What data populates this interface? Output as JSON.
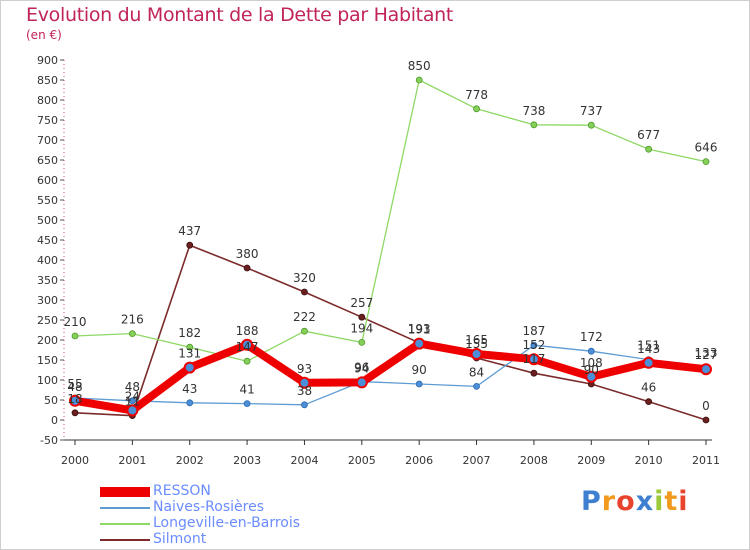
{
  "chart_data": {
    "type": "line",
    "title": "Evolution du Montant de la Dette par Habitant",
    "subtitle": "(en €)",
    "xlabel": "",
    "ylabel": "",
    "x": [
      "2000",
      "2001",
      "2002",
      "2003",
      "2004",
      "2005",
      "2006",
      "2007",
      "2008",
      "2009",
      "2010",
      "2011"
    ],
    "ylim": [
      -50,
      900
    ],
    "yticks": [
      -50,
      0,
      50,
      100,
      150,
      200,
      250,
      300,
      350,
      400,
      450,
      500,
      550,
      600,
      650,
      700,
      750,
      800,
      850,
      900
    ],
    "grid": false,
    "legend_position": "bottom-left",
    "series": [
      {
        "name": "RESSON",
        "color": "#ee0000",
        "values": [
          48,
          24,
          131,
          188,
          93,
          94,
          191,
          165,
          152,
          108,
          143,
          127
        ],
        "labels": [
          "48",
          "24",
          "131",
          "188",
          "93",
          "94",
          "191",
          "165",
          "152",
          "108",
          "143",
          "127"
        ]
      },
      {
        "name": "Naives-Rosières",
        "color": "#5d9bd3",
        "values": [
          55,
          48,
          43,
          41,
          38,
          96,
          90,
          84,
          187,
          172,
          151,
          133
        ],
        "labels": [
          "55",
          "48",
          "43",
          "41",
          "38",
          "96",
          "90",
          "84",
          "187",
          "172",
          "151",
          "133"
        ]
      },
      {
        "name": "Longeville-en-Barrois",
        "color": "#8ed865",
        "values": [
          210,
          216,
          182,
          147,
          222,
          194,
          850,
          778,
          738,
          737,
          677,
          646
        ],
        "labels": [
          "210",
          "216",
          "182",
          "147",
          "222",
          "194",
          "850",
          "778",
          "738",
          "737",
          "677",
          "646"
        ]
      },
      {
        "name": "Silmont",
        "color": "#7b2b2b",
        "values": [
          18,
          11,
          437,
          380,
          320,
          257,
          193,
          155,
          117,
          90,
          46,
          0
        ],
        "labels": [
          "18",
          "11",
          "437",
          "380",
          "320",
          "257",
          "193",
          "155",
          "117",
          "90",
          "46",
          "0"
        ]
      }
    ]
  },
  "logo": {
    "letters": [
      "P",
      "r",
      "o",
      "x",
      "i",
      "t",
      "i"
    ],
    "colors": [
      "#3f7fd1",
      "#f29a1e",
      "#e8432c",
      "#3f7fd1",
      "#9bc93a",
      "#f29a1e",
      "#e8432c"
    ]
  }
}
